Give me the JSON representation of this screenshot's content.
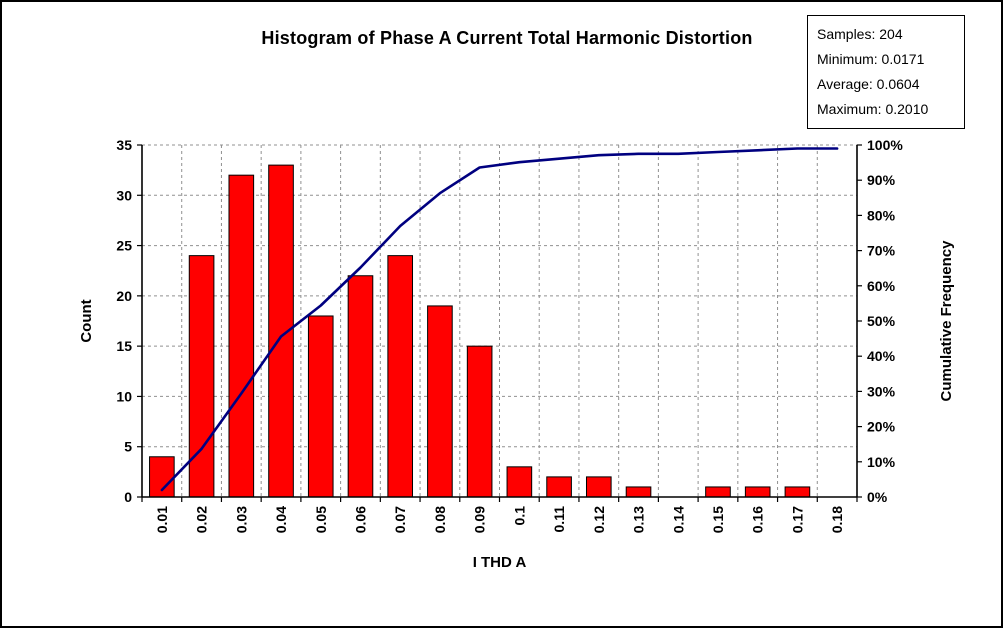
{
  "stats_box": {
    "lines": [
      "Samples: 204",
      "Minimum: 0.0171",
      "Average: 0.0604",
      "Maximum: 0.2010"
    ]
  },
  "chart_data": {
    "type": "bar",
    "subtype": "histogram-with-cumulative-line",
    "title": "Histogram of Phase A Current Total Harmonic Distortion",
    "xlabel": "I THD A",
    "ylabel_left": "Count",
    "ylabel_right": "Cumulative Frequency",
    "categories": [
      "0.01",
      "0.02",
      "0.03",
      "0.04",
      "0.05",
      "0.06",
      "0.07",
      "0.08",
      "0.09",
      "0.1",
      "0.11",
      "0.12",
      "0.13",
      "0.14",
      "0.15",
      "0.16",
      "0.17",
      "0.18"
    ],
    "series": [
      {
        "name": "Count",
        "type": "bar",
        "color": "#FF0000",
        "values": [
          4,
          24,
          32,
          33,
          18,
          22,
          24,
          19,
          15,
          3,
          2,
          2,
          1,
          0,
          1,
          1,
          1,
          0
        ]
      },
      {
        "name": "Cumulative Frequency",
        "type": "line",
        "color": "#000080",
        "values_percent": [
          2.0,
          13.7,
          29.4,
          45.6,
          54.4,
          65.2,
          77.0,
          86.3,
          93.6,
          95.1,
          96.1,
          97.1,
          97.5,
          97.5,
          98.0,
          98.5,
          99.0,
          99.0
        ]
      }
    ],
    "left_axis": {
      "min": 0,
      "max": 35,
      "step": 5,
      "ticks": [
        "0",
        "5",
        "10",
        "15",
        "20",
        "25",
        "30",
        "35"
      ]
    },
    "right_axis": {
      "min": 0,
      "max": 100,
      "step": 10,
      "ticks": [
        "0%",
        "10%",
        "20%",
        "30%",
        "40%",
        "50%",
        "60%",
        "70%",
        "80%",
        "90%",
        "100%"
      ]
    },
    "grid": "dashed",
    "legend_position": "none"
  }
}
